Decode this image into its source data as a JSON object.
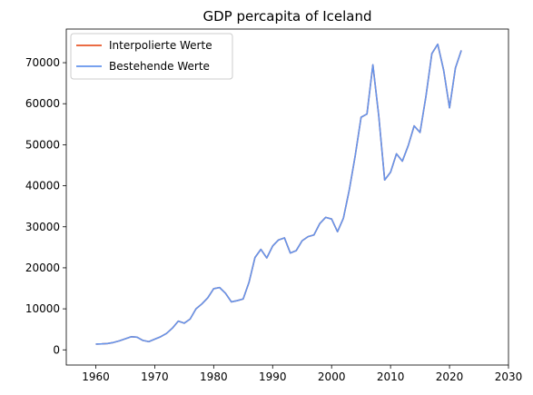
{
  "chart_data": {
    "type": "line",
    "title": "GDP percapita of Iceland",
    "xlabel": "",
    "ylabel": "",
    "xlim": [
      1955,
      2030
    ],
    "ylim": [
      -3700,
      78200
    ],
    "xticks": [
      1960,
      1970,
      1980,
      1990,
      2000,
      2010,
      2020,
      2030
    ],
    "yticks": [
      0,
      10000,
      20000,
      30000,
      40000,
      50000,
      60000,
      70000
    ],
    "grid": false,
    "legend_position": "top-left",
    "x": [
      1960,
      1961,
      1962,
      1963,
      1964,
      1965,
      1966,
      1967,
      1968,
      1969,
      1970,
      1971,
      1972,
      1973,
      1974,
      1975,
      1976,
      1977,
      1978,
      1979,
      1980,
      1981,
      1982,
      1983,
      1984,
      1985,
      1986,
      1987,
      1988,
      1989,
      1990,
      1991,
      1992,
      1993,
      1994,
      1995,
      1996,
      1997,
      1998,
      1999,
      2000,
      2001,
      2002,
      2003,
      2004,
      2005,
      2006,
      2007,
      2008,
      2009,
      2010,
      2011,
      2012,
      2013,
      2014,
      2015,
      2016,
      2017,
      2018,
      2019,
      2020,
      2021,
      2022
    ],
    "series": [
      {
        "name": "Interpolierte Werte",
        "color": "#e8572a",
        "values": [
          1400,
          1450,
          1550,
          1800,
          2200,
          2700,
          3200,
          3100,
          2300,
          2000,
          2600,
          3200,
          4000,
          5300,
          7000,
          6500,
          7500,
          10000,
          11200,
          12700,
          14900,
          15200,
          13800,
          11700,
          12000,
          12400,
          16500,
          22500,
          24500,
          22400,
          25300,
          26800,
          27300,
          23600,
          24200,
          26600,
          27600,
          28000,
          30800,
          32300,
          31900,
          28800,
          32100,
          39000,
          47300,
          56700,
          57500,
          69500,
          57000,
          41400,
          43300,
          47800,
          46000,
          49800,
          54600,
          53000,
          61800,
          72200,
          74500,
          68200,
          59000,
          68700,
          73000
        ]
      },
      {
        "name": "Bestehende Werte",
        "color": "#6495ed",
        "values": [
          1400,
          1450,
          1550,
          1800,
          2200,
          2700,
          3200,
          3100,
          2300,
          2000,
          2600,
          3200,
          4000,
          5300,
          7000,
          6500,
          7500,
          10000,
          11200,
          12700,
          14900,
          15200,
          13800,
          11700,
          12000,
          12400,
          16500,
          22500,
          24500,
          22400,
          25300,
          26800,
          27300,
          23600,
          24200,
          26600,
          27600,
          28000,
          30800,
          32300,
          31900,
          28800,
          32100,
          39000,
          47300,
          56700,
          57500,
          69500,
          57000,
          41400,
          43300,
          47800,
          46000,
          49800,
          54600,
          53000,
          61800,
          72200,
          74500,
          68200,
          59000,
          68700,
          73000
        ]
      }
    ]
  }
}
